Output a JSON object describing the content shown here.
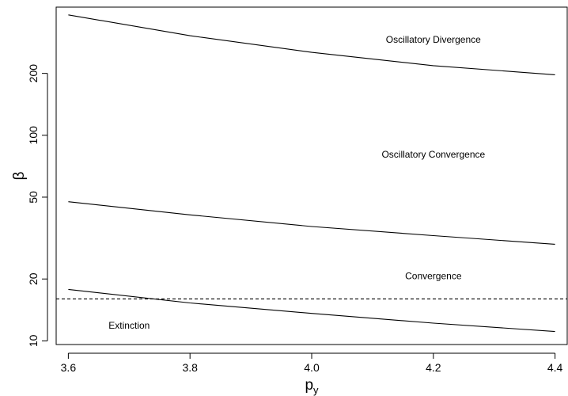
{
  "chart_data": {
    "type": "line",
    "title": "",
    "xlabel": "p",
    "xlabel_subscript": "y",
    "ylabel": "β",
    "xlim": [
      3.58,
      4.42
    ],
    "ylim": [
      9.6,
      420
    ],
    "y_scale": "log",
    "x_ticks": [
      3.6,
      3.8,
      4.0,
      4.2,
      4.4
    ],
    "x_tick_labels": [
      "3.6",
      "3.8",
      "4.0",
      "4.2",
      "4.4"
    ],
    "y_ticks": [
      10,
      20,
      50,
      100,
      200
    ],
    "y_tick_labels": [
      "10",
      "20",
      "50",
      "100",
      "200"
    ],
    "series": [
      {
        "x": [
          3.6,
          3.8,
          4.0,
          4.2,
          4.4
        ],
        "values": [
          385,
          305,
          253,
          218,
          197
        ],
        "style": "solid"
      },
      {
        "x": [
          3.6,
          3.8,
          4.0,
          4.2,
          4.4
        ],
        "values": [
          47.5,
          41,
          36,
          32.5,
          29.5
        ],
        "style": "solid"
      },
      {
        "x": [
          3.6,
          3.8,
          4.0,
          4.2,
          4.4
        ],
        "values": [
          17.8,
          15.3,
          13.6,
          12.2,
          11.1
        ],
        "style": "solid"
      },
      {
        "x": [
          3.58,
          4.42
        ],
        "values": [
          16,
          16
        ],
        "style": "dashed"
      }
    ],
    "annotations": [
      {
        "text": "Oscillatory Divergence",
        "x": 4.2,
        "y": 290
      },
      {
        "text": "Oscillatory Convergence",
        "x": 4.2,
        "y": 80
      },
      {
        "text": "Convergence",
        "x": 4.2,
        "y": 20.5
      },
      {
        "text": "Extinction",
        "x": 3.7,
        "y": 11.8
      }
    ],
    "grid": false,
    "legend": "none"
  }
}
